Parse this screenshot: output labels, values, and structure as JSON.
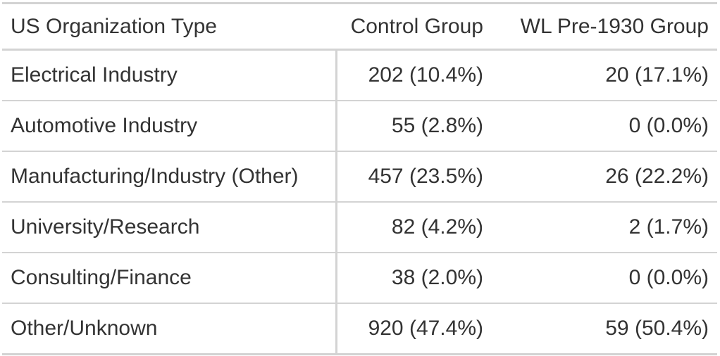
{
  "chart_data": {
    "type": "table",
    "columns": [
      "US Organization Type",
      "Control Group",
      "WL Pre-1930 Group"
    ],
    "rows": [
      [
        "Electrical Industry",
        "202 (10.4%)",
        "20 (17.1%)"
      ],
      [
        "Automotive Industry",
        "55 (2.8%)",
        "0 (0.0%)"
      ],
      [
        "Manufacturing/Industry (Other)",
        "457 (23.5%)",
        "26 (22.2%)"
      ],
      [
        "University/Research",
        "82 (4.2%)",
        "2 (1.7%)"
      ],
      [
        "Consulting/Finance",
        "38 (2.0%)",
        "0 (0.0%)"
      ],
      [
        "Other/Unknown",
        "920 (47.4%)",
        "59 (50.4%)"
      ]
    ]
  }
}
